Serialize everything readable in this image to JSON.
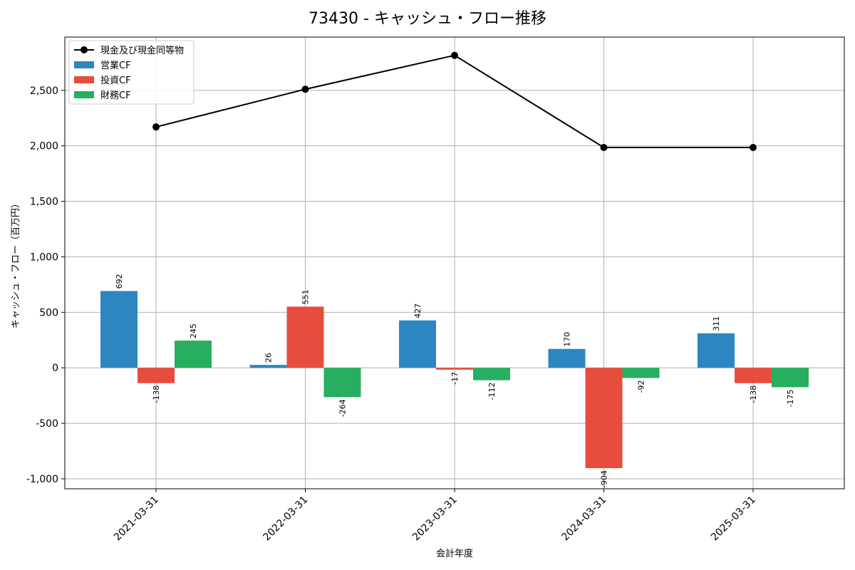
{
  "chart_data": {
    "type": "bar",
    "title": "73430 - キャッシュ・フロー推移",
    "xlabel": "会計年度",
    "ylabel": "キャッシュ・フロー（百万円）",
    "categories": [
      "2021-03-31",
      "2022-03-31",
      "2023-03-31",
      "2024-03-31",
      "2025-03-31"
    ],
    "ylim": [
      -1090,
      2980
    ],
    "yticks": [
      -1000,
      -500,
      0,
      500,
      1000,
      1500,
      2000,
      2500
    ],
    "ytick_labels": [
      "-1,000",
      "-500",
      "0",
      "500",
      "1,000",
      "1,500",
      "2,000",
      "2,500"
    ],
    "grid": true,
    "legend_position": "top-left",
    "series": [
      {
        "name": "営業CF",
        "kind": "bar",
        "color": "#2e86c1",
        "values": [
          692,
          26,
          427,
          170,
          311
        ]
      },
      {
        "name": "投資CF",
        "kind": "bar",
        "color": "#e74c3c",
        "values": [
          -138,
          551,
          -17,
          -904,
          -138
        ]
      },
      {
        "name": "財務CF",
        "kind": "bar",
        "color": "#27ae60",
        "values": [
          245,
          -264,
          -112,
          -92,
          -175
        ]
      },
      {
        "name": "現金及び現金同等物",
        "kind": "line",
        "color": "#000000",
        "values": [
          2170,
          2510,
          2815,
          1985,
          1985
        ]
      }
    ]
  }
}
